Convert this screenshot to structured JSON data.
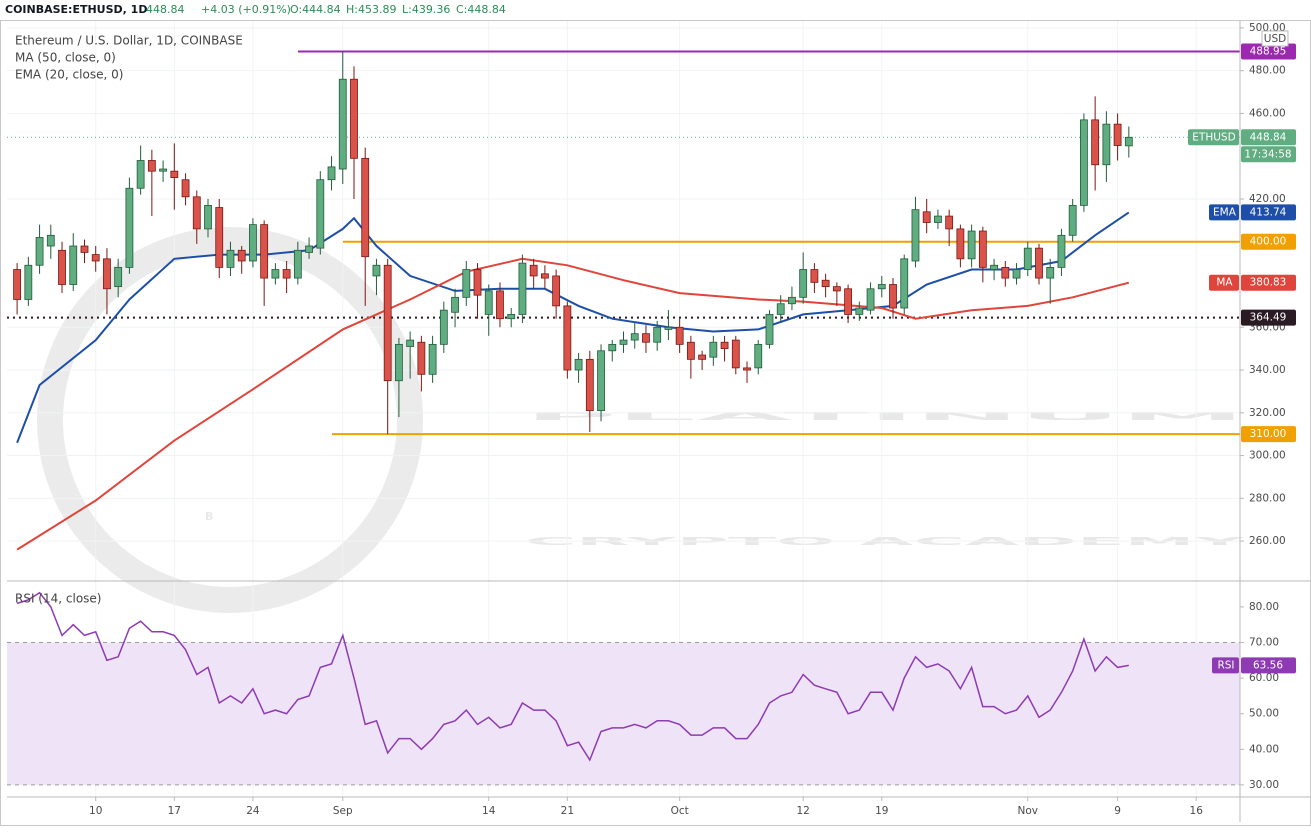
{
  "header": {
    "symbol": "COINBASE:ETHUSD, 1D",
    "last": "448.84",
    "change": "+4.03 (+0.91%)",
    "ohlc": [
      "O:444.84",
      "H:453.89",
      "L:439.36",
      "C:448.84"
    ]
  },
  "watermark": [
    "PLATINUM",
    "CRYPTO ACADEMY"
  ],
  "chart_data": [
    {
      "type": "candlestick",
      "title": "Ethereum / U.S. Dollar, 1D, COINBASE",
      "tag": "ETHUSD",
      "countdown": "17:34:58",
      "axis_unit": "USD",
      "up_color": "#5fad80",
      "down_color": "#d9534a",
      "open": [
        387,
        373,
        389,
        398,
        396,
        380,
        398,
        394,
        392,
        379,
        388,
        425,
        438,
        433,
        433,
        429,
        421,
        406,
        416,
        388,
        396,
        391,
        408,
        383,
        387,
        383,
        395,
        397,
        429,
        434,
        476,
        439,
        384,
        389,
        335,
        351,
        353,
        338,
        352,
        367,
        374,
        387,
        366,
        377,
        364,
        366,
        389,
        385,
        384,
        370,
        340,
        345,
        321,
        349,
        352,
        354,
        357,
        353,
        359,
        360,
        353,
        347,
        346,
        353,
        354,
        341,
        341,
        352,
        366,
        371,
        374,
        387,
        382,
        379,
        378,
        366,
        368,
        378,
        380,
        369,
        391,
        414,
        409,
        412,
        406,
        392,
        405,
        387,
        388,
        383,
        387,
        397,
        383,
        388,
        403,
        417,
        457,
        436,
        455,
        444.84
      ],
      "high": [
        390,
        393,
        408,
        408,
        400,
        404,
        401,
        398,
        397,
        392,
        430,
        445,
        443,
        438,
        446,
        432,
        424,
        420,
        420,
        400,
        398,
        411,
        410,
        390,
        391,
        400,
        402,
        433,
        440,
        489,
        482,
        444,
        392,
        392,
        355,
        358,
        356,
        356,
        372,
        378,
        391,
        390,
        380,
        381,
        369,
        394,
        392,
        389,
        387,
        372,
        348,
        349,
        352,
        354,
        358,
        362,
        361,
        363,
        368,
        364,
        356,
        349,
        356,
        356,
        356,
        344,
        354,
        368,
        375,
        379,
        395,
        390,
        385,
        381,
        380,
        372,
        381,
        384,
        383,
        394,
        421,
        420,
        415,
        415,
        408,
        408,
        407,
        392,
        391,
        390,
        400,
        399,
        392,
        406,
        420,
        460,
        468,
        461,
        460,
        453.89
      ],
      "low": [
        366,
        370,
        385,
        392,
        376,
        377,
        390,
        386,
        366,
        374,
        385,
        422,
        412,
        428,
        415,
        417,
        399,
        402,
        383,
        384,
        385,
        388,
        370,
        380,
        376,
        380,
        392,
        394,
        424,
        427,
        420,
        370,
        375,
        310,
        318,
        336,
        330,
        334,
        348,
        360,
        370,
        364,
        356,
        360,
        360,
        362,
        378,
        378,
        364,
        336,
        334,
        311,
        316,
        344,
        348,
        350,
        348,
        349,
        354,
        348,
        336,
        340,
        342,
        344,
        338,
        334,
        338,
        350,
        362,
        368,
        371,
        376,
        374,
        370,
        362,
        363,
        366,
        374,
        364,
        366,
        388,
        404,
        406,
        398,
        388,
        388,
        381,
        382,
        379,
        380,
        384,
        380,
        371,
        384,
        400,
        414,
        424,
        428,
        438,
        439.36
      ],
      "close": [
        373,
        389,
        402,
        403,
        380,
        398,
        395,
        391,
        378,
        388,
        425,
        438,
        433,
        434,
        430,
        421,
        406,
        417,
        388,
        396,
        391,
        408,
        383,
        387,
        383,
        396,
        398,
        429,
        435,
        476,
        439,
        393,
        389,
        335,
        352,
        354,
        338,
        352,
        368,
        374,
        387,
        375,
        377,
        364,
        366,
        390,
        384,
        383,
        370,
        340,
        345,
        321,
        349,
        352,
        354,
        357,
        353,
        360,
        360,
        352,
        345,
        345,
        353,
        350,
        341,
        340,
        352,
        366,
        371,
        374,
        387,
        381,
        379,
        377,
        366,
        369,
        378,
        380,
        369,
        392,
        415,
        409,
        412,
        406,
        392,
        405,
        388,
        389,
        383,
        387,
        397,
        383,
        388,
        403,
        417,
        457,
        436,
        455,
        445,
        448.84
      ],
      "series": [
        {
          "name": "EMA (20, close, 0)",
          "tag": "EMA",
          "color": "#1e4fa8",
          "x": [
            0,
            2,
            7,
            10,
            14,
            18,
            22,
            26,
            29,
            30,
            32,
            35,
            39,
            43,
            47,
            50,
            53,
            58,
            62,
            66,
            70,
            74,
            78,
            81,
            85,
            89,
            93,
            96,
            99
          ],
          "values": [
            306,
            333,
            354,
            373,
            392,
            394,
            394,
            396,
            406,
            411,
            398,
            384,
            377,
            378,
            378,
            370,
            364,
            360,
            358,
            359,
            366,
            368,
            370,
            380,
            387,
            387,
            391,
            403,
            413.74
          ]
        },
        {
          "name": "MA (50, close, 0)",
          "tag": "MA",
          "color": "#e0443a",
          "x": [
            0,
            7,
            14,
            21,
            29,
            35,
            40,
            45,
            49,
            54,
            59,
            66,
            70,
            77,
            80,
            85,
            90,
            94,
            99
          ],
          "values": [
            256,
            279,
            307,
            331,
            359,
            373,
            386,
            392,
            389,
            382,
            376,
            373,
            372,
            369,
            364,
            368,
            370,
            374,
            380.83
          ]
        }
      ],
      "levels": [
        {
          "value": 488.95,
          "label": "488.95",
          "color": "#9c27b0"
        },
        {
          "value": 400,
          "label": "400.00",
          "color": "#f0a000"
        },
        {
          "value": 364.49,
          "label": "364.49",
          "color": "#2a1a22",
          "style": "dotted"
        },
        {
          "value": 310,
          "label": "310.00",
          "color": "#f0a000"
        }
      ],
      "xlim": [
        -0.9,
        108.9
      ],
      "ylim": [
        241.8,
        503.7
      ],
      "yticks": [
        {
          "value": 260,
          "label": "260.00"
        },
        {
          "value": 280,
          "label": "280.00"
        },
        {
          "value": 300,
          "label": "300.00"
        },
        {
          "value": 320,
          "label": "320.00"
        },
        {
          "value": 340,
          "label": "340.00"
        },
        {
          "value": 360,
          "label": "360.00"
        },
        {
          "value": 420,
          "label": "420.00"
        },
        {
          "value": 460,
          "label": "460.00"
        },
        {
          "value": 480,
          "label": "480.00"
        },
        {
          "value": 500,
          "label": "500.00"
        }
      ],
      "xticks": [
        {
          "value": 7,
          "label": "10"
        },
        {
          "value": 14,
          "label": "17"
        },
        {
          "value": 21,
          "label": "24"
        },
        {
          "value": 29,
          "label": "Sep"
        },
        {
          "value": 42,
          "label": "14"
        },
        {
          "value": 49,
          "label": "21"
        },
        {
          "value": 59,
          "label": "Oct"
        },
        {
          "value": 70,
          "label": "12"
        },
        {
          "value": 77,
          "label": "19"
        },
        {
          "value": 90,
          "label": "Nov"
        },
        {
          "value": 98,
          "label": "9"
        },
        {
          "value": 105,
          "label": "16"
        }
      ],
      "grid": true
    },
    {
      "type": "line",
      "title": "RSI (14, close)",
      "tag": "RSI",
      "color": "#8e3bb3",
      "band": [
        30,
        70
      ],
      "band_color": "#efe3f7",
      "values": [
        81,
        82,
        84,
        80,
        72,
        75,
        72,
        73,
        65,
        66,
        74,
        76,
        73,
        73,
        72,
        68,
        61,
        63,
        53,
        55,
        53,
        57,
        50,
        51,
        50,
        54,
        55,
        63,
        64,
        72,
        60,
        47,
        48,
        39,
        43,
        43,
        40,
        43,
        47,
        48,
        51,
        47,
        49,
        46,
        47,
        53,
        51,
        51,
        48,
        41,
        42,
        37,
        45,
        46,
        46,
        47,
        46,
        48,
        48,
        47,
        44,
        44,
        46,
        46,
        43,
        43,
        47,
        53,
        55,
        56,
        61,
        58,
        57,
        56,
        50,
        51,
        56,
        56,
        51,
        60,
        66,
        63,
        64,
        62,
        57,
        63,
        52,
        52,
        50,
        51,
        55,
        49,
        51,
        56,
        62,
        71,
        62,
        66,
        63,
        63.56
      ],
      "xlim": [
        -0.9,
        108.9
      ],
      "ylim": [
        26.6,
        87
      ],
      "yticks": [
        {
          "value": 30,
          "label": "30.00"
        },
        {
          "value": 40,
          "label": "40.00"
        },
        {
          "value": 50,
          "label": "50.00"
        },
        {
          "value": 60,
          "label": "60.00"
        },
        {
          "value": 70,
          "label": "70.00"
        },
        {
          "value": 80,
          "label": "80.00"
        }
      ]
    }
  ]
}
